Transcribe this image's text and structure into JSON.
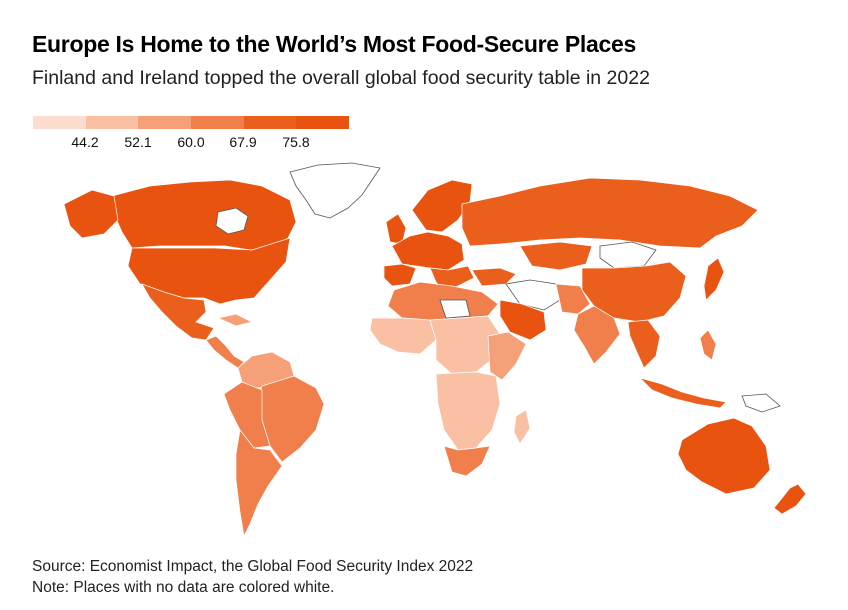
{
  "title": "Europe Is Home to the World’s Most Food-Secure Places",
  "subtitle": "Finland and Ireland topped the overall global food security table in 2022",
  "legend": {
    "breaks": [
      "44.2",
      "52.1",
      "60.0",
      "67.9",
      "75.8"
    ],
    "colors": [
      "#fcded0",
      "#f9c0a4",
      "#f5a077",
      "#f07f4b",
      "#eb5f1d",
      "#e85410"
    ],
    "nodata_color": "#ffffff"
  },
  "footer": {
    "source": "Source: Economist Impact, the Global Food Security Index 2022",
    "note": "Note: Places with no data are colored white."
  }
}
